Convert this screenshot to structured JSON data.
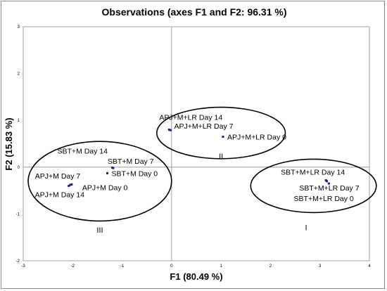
{
  "chart_data": {
    "type": "scatter",
    "title": "Observations (axes F1 and F2: 96.31 %)",
    "xlabel": "F1 (80.49 %)",
    "ylabel": "F2 (15.83 %)",
    "xlim": [
      -3,
      4
    ],
    "ylim": [
      -2,
      3
    ],
    "xticks": [
      "-3",
      "-2",
      "-1",
      "0",
      "1",
      "2",
      "3",
      "4"
    ],
    "yticks": [
      "-2",
      "-1",
      "0",
      "1",
      "2",
      "3"
    ],
    "grid": false,
    "marker_color": "#1f1f8f",
    "points": [
      {
        "label": "APJ+M+LR Day 14",
        "x": -0.05,
        "y": 0.8
      },
      {
        "label": "APJ+M+LR Day 7",
        "x": -0.02,
        "y": 0.79
      },
      {
        "label": "APJ+M+LR Day 0",
        "x": 1.04,
        "y": 0.65
      },
      {
        "label": "SBT+M Day 14",
        "x": -1.2,
        "y": -0.01
      },
      {
        "label": "SBT+M Day 7",
        "x": -1.18,
        "y": -0.02
      },
      {
        "label": "SBT+M Day 0",
        "x": -1.3,
        "y": -0.13
      },
      {
        "label": "APJ+M Day 7",
        "x": -2.05,
        "y": -0.38
      },
      {
        "label": "APJ+M Day 0",
        "x": -2.02,
        "y": -0.37
      },
      {
        "label": "APJ+M Day 14",
        "x": -2.08,
        "y": -0.4
      },
      {
        "label": "SBT+M+LR Day 14",
        "x": 3.12,
        "y": -0.28
      },
      {
        "label": "SBT+M+LR Day 7",
        "x": 3.18,
        "y": -0.35
      },
      {
        "label": "SBT+M+LR Day 0",
        "x": 3.14,
        "y": -0.3
      }
    ],
    "groups": [
      {
        "label": "II",
        "cx": 1.0,
        "cy": 0.73,
        "rx": 1.3,
        "ry": 0.55
      },
      {
        "label": "III",
        "cx": -1.45,
        "cy": -0.3,
        "rx": 1.45,
        "ry": 0.85
      },
      {
        "label": "I",
        "cx": 2.87,
        "cy": -0.4,
        "rx": 1.27,
        "ry": 0.57
      }
    ]
  }
}
